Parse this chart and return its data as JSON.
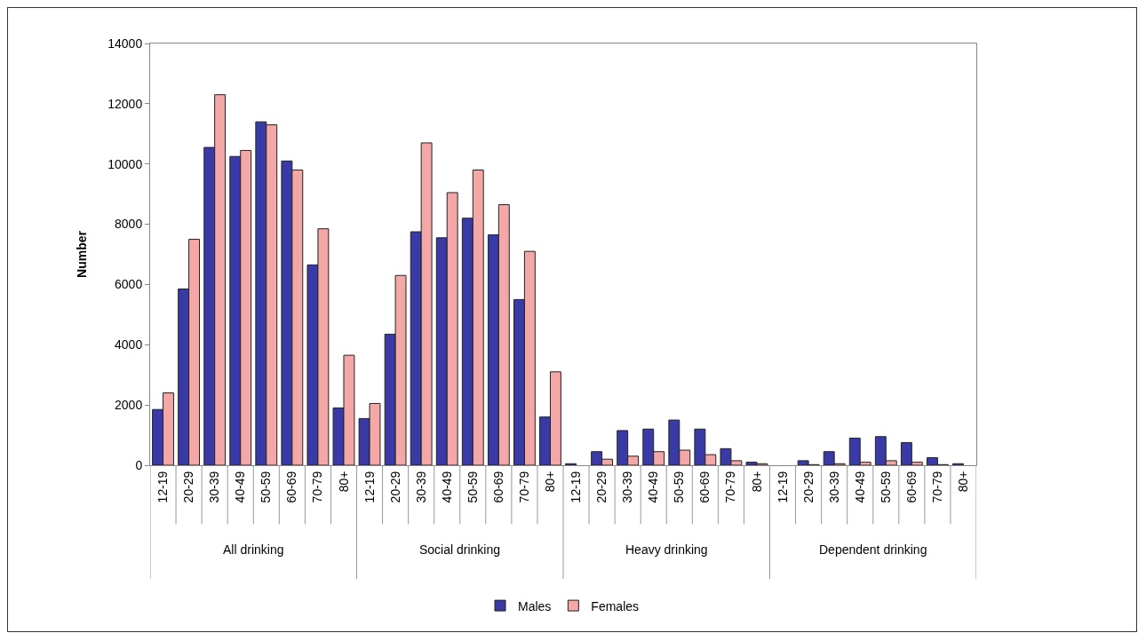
{
  "chart_data": {
    "type": "bar",
    "ylabel": "Number",
    "categories": [
      "12-19",
      "20-29",
      "30-39",
      "40-49",
      "50-59",
      "60-69",
      "70-79",
      "80+",
      "12-19",
      "20-29",
      "30-39",
      "40-49",
      "50-59",
      "60-69",
      "70-79",
      "80+",
      "12-19",
      "20-29",
      "30-39",
      "40-49",
      "50-59",
      "60-69",
      "70-79",
      "80+",
      "12-19",
      "20-29",
      "30-39",
      "40-49",
      "50-59",
      "60-69",
      "70-79",
      "80+"
    ],
    "annotations": [
      "All drinking",
      "Social drinking",
      "Heavy drinking",
      "Dependent drinking"
    ],
    "series": [
      {
        "name": "Males",
        "color": "#3a3aa6",
        "values": [
          1850,
          5850,
          10550,
          10250,
          11400,
          10100,
          6650,
          1900,
          1550,
          4350,
          7750,
          7550,
          8200,
          7650,
          5500,
          1600,
          50,
          450,
          1150,
          1200,
          1500,
          1200,
          550,
          100,
          0,
          150,
          450,
          900,
          950,
          750,
          250,
          50
        ]
      },
      {
        "name": "Females",
        "color": "#f4a7a7",
        "values": [
          2400,
          7500,
          12300,
          10450,
          11300,
          9800,
          7850,
          3650,
          2050,
          6300,
          10700,
          9050,
          9800,
          8650,
          7100,
          3100,
          null,
          200,
          300,
          450,
          500,
          350,
          150,
          50,
          0,
          20,
          50,
          100,
          150,
          100,
          20,
          null
        ]
      }
    ],
    "ylim": [
      0,
      14000
    ],
    "yticks": [
      0,
      2000,
      4000,
      6000,
      8000,
      10000,
      12000,
      14000
    ],
    "grid": false,
    "legend": "bottom"
  }
}
